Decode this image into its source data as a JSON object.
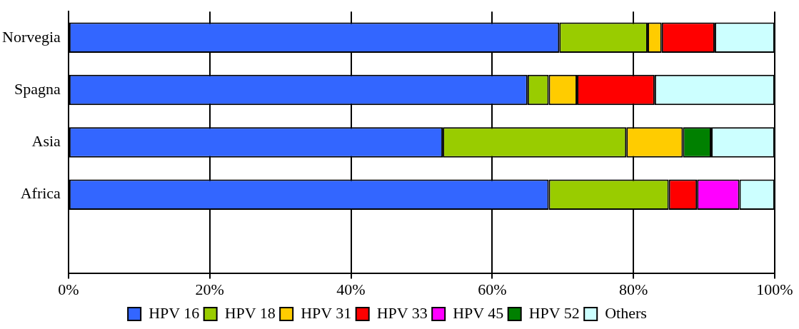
{
  "chart_data": {
    "type": "bar",
    "orientation": "horizontal",
    "stacked": true,
    "categories": [
      "Norvegia",
      "Spagna",
      "Asia",
      "Africa",
      null
    ],
    "series": [
      {
        "name": "HPV 16",
        "color": "#3366ff",
        "values": [
          69.5,
          65,
          53,
          68,
          null
        ]
      },
      {
        "name": "HPV 18",
        "color": "#99cc00",
        "values": [
          12.5,
          3,
          26,
          17,
          null
        ]
      },
      {
        "name": "HPV 31",
        "color": "#ffcc00",
        "values": [
          2,
          4,
          8,
          null,
          null
        ]
      },
      {
        "name": "HPV 33",
        "color": "#ff0000",
        "values": [
          7.5,
          11,
          null,
          4,
          null
        ]
      },
      {
        "name": "HPV 45",
        "color": "#ff00ff",
        "values": [
          null,
          null,
          null,
          6,
          null
        ]
      },
      {
        "name": "HPV 52",
        "color": "#008000",
        "values": [
          null,
          null,
          4,
          null,
          null
        ]
      },
      {
        "name": "Others",
        "color": "#ccffff",
        "values": [
          8.5,
          17,
          9,
          5,
          null
        ]
      }
    ],
    "xlim": [
      0,
      100
    ],
    "xticks": [
      {
        "value": 0,
        "label": "0%"
      },
      {
        "value": 20,
        "label": "20%"
      },
      {
        "value": 40,
        "label": "40%"
      },
      {
        "value": 60,
        "label": "60%"
      },
      {
        "value": 80,
        "label": "80%"
      },
      {
        "value": 100,
        "label": "100%"
      }
    ],
    "grid": "x",
    "legend": "bottom"
  }
}
